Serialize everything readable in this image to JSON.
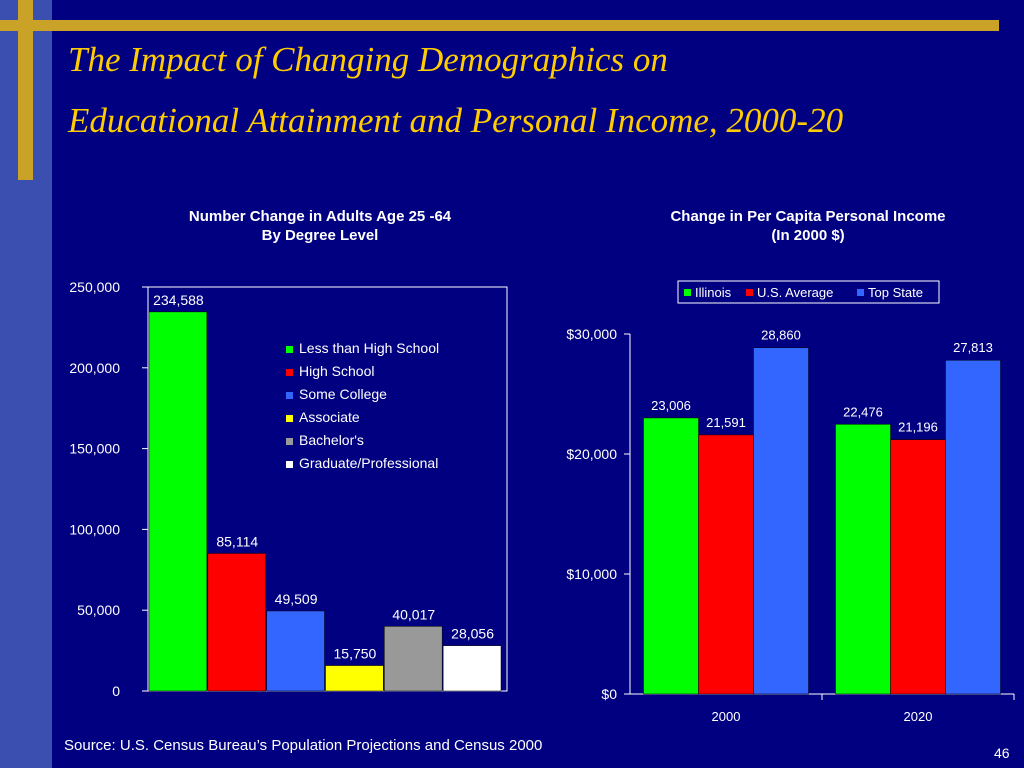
{
  "slide": {
    "title_line1": "The Impact of Changing Demographics on",
    "title_line2": "Educational Attainment and Personal Income, 2000-20",
    "source": "Source:  U.S. Census Bureau’s Population Projections and Census 2000",
    "page_number": "46",
    "colors": {
      "background": "#000080",
      "accent": "#c9a227",
      "title": "#ffcc00",
      "band": "#3a4fb0"
    }
  },
  "chart_data": [
    {
      "type": "bar",
      "title_line1": "Number Change in Adults Age 25 -64",
      "title_line2": "By Degree Level",
      "categories": [
        "Less than High School",
        "High School",
        "Some College",
        "Associate",
        "Bachelor's",
        "Graduate/Professional"
      ],
      "values": [
        234588,
        85114,
        49509,
        15750,
        40017,
        28056
      ],
      "labels": [
        "234,588",
        "85,114",
        "49,509",
        "15,750",
        "40,017",
        "28,056"
      ],
      "colors": [
        "#00ff00",
        "#ff0000",
        "#3366ff",
        "#ffff00",
        "#999999",
        "#ffffff"
      ],
      "ylim": [
        0,
        250000
      ],
      "yticks": [
        0,
        50000,
        100000,
        150000,
        200000,
        250000
      ],
      "ytick_labels": [
        "0",
        "50,000",
        "100,000",
        "150,000",
        "200,000",
        "250,000"
      ],
      "legend": "right",
      "grid": false
    },
    {
      "type": "bar",
      "title_line1": "Change in Per Capita Personal Income",
      "title_line2": "(In 2000 $)",
      "categories": [
        "2000",
        "2020"
      ],
      "series": [
        {
          "name": "Illinois",
          "color": "#00ff00",
          "values": [
            23006,
            22476
          ],
          "labels": [
            "23,006",
            "22,476"
          ]
        },
        {
          "name": "U.S. Average",
          "color": "#ff0000",
          "values": [
            21591,
            21196
          ],
          "labels": [
            "21,591",
            "21,196"
          ]
        },
        {
          "name": "Top State",
          "color": "#3366ff",
          "values": [
            28860,
            27813
          ],
          "labels": [
            "28,860",
            "27,813"
          ]
        }
      ],
      "ylim": [
        0,
        30000
      ],
      "yticks": [
        0,
        10000,
        20000,
        30000
      ],
      "ytick_labels": [
        "$0",
        "$10,000",
        "$20,000",
        "$30,000"
      ],
      "legend": "top",
      "grid": false
    }
  ]
}
